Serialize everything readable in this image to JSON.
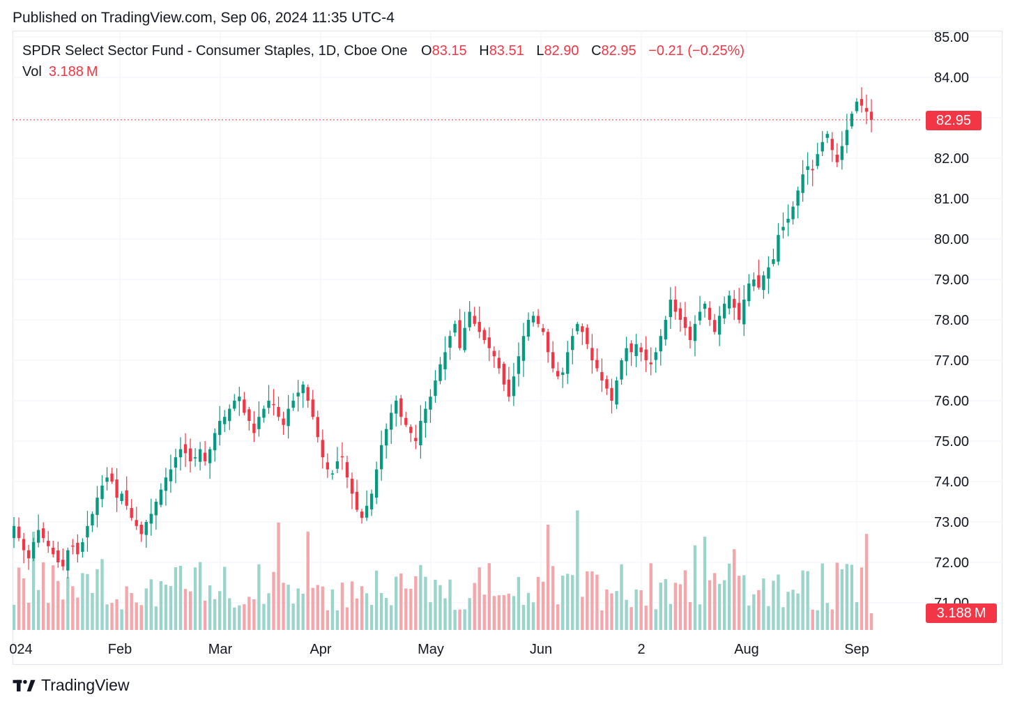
{
  "published": "Published on TradingView.com, Sep 06, 2024 11:35 UTC-4",
  "legend": {
    "title": "SPDR Select Sector Fund - Consumer Staples, 1D, Cboe One",
    "open_label": "O",
    "open": "83.15",
    "high_label": "H",
    "high": "83.51",
    "low_label": "L",
    "low": "82.90",
    "close_label": "C",
    "close": "82.95",
    "change": "−0.21 (−0.25%)",
    "vol_label": "Vol",
    "vol": "3.188 M"
  },
  "badges": {
    "price": "82.95",
    "volume": "3.188 M"
  },
  "footer": {
    "brand": "TradingView"
  },
  "colors": {
    "up": "#089981",
    "down": "#f23645",
    "up_vol": "#9ad4cb",
    "down_vol": "#f4a6ab",
    "grid": "#f0f3fa"
  },
  "chart_data": {
    "type": "candlestick",
    "y_axis": {
      "ticks": [
        "71.00",
        "72.00",
        "73.00",
        "74.00",
        "75.00",
        "76.00",
        "77.00",
        "78.00",
        "79.00",
        "80.00",
        "81.00",
        "82.00",
        "83.00",
        "84.00",
        "85.00"
      ],
      "range": [
        70.4,
        85.0
      ],
      "position": "right"
    },
    "x_axis": {
      "labels": [
        "024",
        "Feb",
        "Mar",
        "Apr",
        "May",
        "Jun",
        "2",
        "Aug",
        "Sep"
      ]
    },
    "last_price_line": 82.95,
    "series": [
      {
        "name": "price",
        "note": "approximate daily closes, Jan 2 2024 - Sep 6 2024",
        "closes": [
          72.9,
          72.6,
          72.3,
          72.1,
          72.5,
          72.8,
          72.6,
          72.4,
          72.2,
          72.0,
          71.9,
          72.3,
          72.4,
          72.2,
          72.5,
          72.9,
          73.2,
          73.6,
          73.9,
          74.1,
          74.0,
          73.6,
          73.7,
          73.4,
          73.1,
          72.9,
          72.7,
          73.0,
          73.2,
          73.5,
          73.8,
          74.1,
          74.3,
          74.6,
          74.8,
          74.7,
          74.5,
          74.6,
          74.8,
          74.5,
          74.8,
          75.2,
          75.5,
          75.6,
          75.8,
          76.0,
          76.1,
          75.7,
          75.5,
          75.2,
          75.6,
          75.8,
          76.0,
          75.9,
          75.6,
          75.4,
          75.8,
          76.0,
          76.2,
          76.4,
          76.0,
          75.6,
          75.1,
          74.6,
          74.3,
          74.2,
          74.5,
          74.6,
          74.1,
          73.7,
          73.3,
          73.1,
          73.4,
          73.7,
          74.3,
          74.9,
          75.3,
          75.7,
          76.0,
          75.6,
          75.4,
          75.2,
          75.0,
          75.5,
          75.8,
          76.1,
          76.5,
          76.9,
          77.2,
          77.6,
          77.9,
          77.3,
          77.8,
          78.2,
          77.9,
          77.7,
          77.5,
          77.3,
          77.1,
          76.8,
          76.4,
          76.1,
          76.6,
          77.1,
          77.6,
          78.0,
          78.1,
          77.9,
          77.7,
          77.2,
          76.8,
          76.6,
          76.7,
          77.2,
          77.6,
          77.9,
          77.7,
          77.4,
          77.0,
          76.8,
          76.5,
          76.3,
          76.0,
          76.5,
          77.0,
          77.3,
          77.2,
          77.4,
          77.2,
          77.0,
          76.9,
          77.2,
          77.6,
          78.0,
          78.5,
          78.2,
          78.0,
          77.8,
          77.5,
          77.9,
          78.2,
          78.4,
          78.0,
          77.7,
          78.1,
          78.4,
          78.6,
          78.3,
          78.0,
          78.5,
          78.9,
          79.0,
          78.8,
          79.1,
          79.3,
          79.5,
          80.1,
          80.3,
          80.5,
          80.8,
          81.2,
          81.6,
          81.8,
          81.7,
          82.1,
          82.4,
          82.6,
          82.2,
          81.9,
          82.3,
          82.7,
          83.1,
          83.4,
          83.3,
          83.15,
          82.95
        ]
      }
    ]
  }
}
